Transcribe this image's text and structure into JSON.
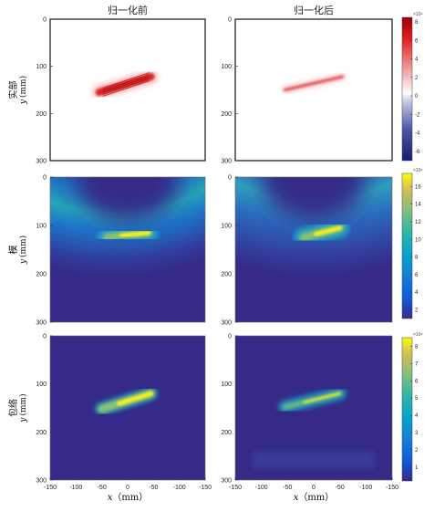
{
  "chart_data": {
    "type": "heatmap",
    "column_titles": [
      "归一化前",
      "归一化后"
    ],
    "x_axis": {
      "label_var": "x",
      "label_unit": "（mm）",
      "range": [
        -150,
        150
      ],
      "ticks": [
        -150,
        -100,
        -50,
        0,
        50,
        100,
        150
      ],
      "tick_labels": [
        "-150",
        "-100",
        "-50",
        "0",
        "-50",
        "-100",
        "-150"
      ]
    },
    "rows": [
      {
        "label": "实部",
        "y_var": "y",
        "y_unit": "(mm)",
        "y_ticks": [
          0,
          100,
          200,
          300
        ],
        "y_range": [
          0,
          300
        ],
        "colormap": "red-white-blue",
        "colorbar": {
          "multiplier": "×10⁹",
          "ticks": [
            -6,
            -4,
            -2,
            0,
            2,
            4,
            6,
            8
          ],
          "range": [
            -7,
            8.5
          ]
        },
        "panels": [
          {
            "column": "归一化前",
            "blob": {
              "x1": -55,
              "y1": 155,
              "x2": 45,
              "y2": 122,
              "peak": 8
            }
          },
          {
            "column": "归一化后",
            "blob": {
              "x1": -55,
              "y1": 150,
              "x2": 55,
              "y2": 122,
              "peak": 6
            }
          }
        ]
      },
      {
        "label": "模",
        "y_var": "y",
        "y_unit": "(mm)",
        "y_ticks": [
          0,
          100,
          200,
          300
        ],
        "y_range": [
          0,
          300
        ],
        "colormap": "parula",
        "colorbar": {
          "multiplier": "×10⁹",
          "ticks": [
            2,
            4,
            6,
            8,
            10,
            12,
            14,
            16
          ],
          "range": [
            1,
            17.5
          ]
        },
        "panels": [
          {
            "column": "归一化前",
            "blob": {
              "x1": -40,
              "y1": 125,
              "x2": 40,
              "y2": 115,
              "peak": 17
            }
          },
          {
            "column": "归一化后",
            "blob": {
              "x1": -20,
              "y1": 125,
              "x2": 50,
              "y2": 105,
              "peak": 15
            }
          }
        ]
      },
      {
        "label": "包络",
        "y_var": "y",
        "y_unit": "(mm)",
        "y_ticks": [
          0,
          100,
          200,
          300
        ],
        "y_range": [
          0,
          300
        ],
        "colormap": "parula",
        "colorbar": {
          "multiplier": "×10⁹",
          "ticks": [
            1,
            2,
            3,
            4,
            5,
            6,
            7,
            8
          ],
          "range": [
            0.2,
            8.5
          ]
        },
        "panels": [
          {
            "column": "归一化前",
            "blob": {
              "x1": -50,
              "y1": 152,
              "x2": 45,
              "y2": 120,
              "peak": 8
            }
          },
          {
            "column": "归一化后",
            "blob": {
              "x1": -55,
              "y1": 148,
              "x2": 50,
              "y2": 120,
              "peak": 8
            }
          }
        ]
      }
    ]
  }
}
